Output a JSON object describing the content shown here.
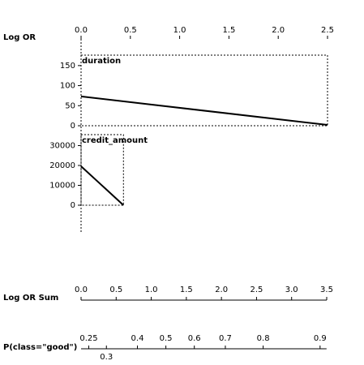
{
  "chart_data": {
    "type": "nomogram",
    "top_axis": {
      "label": "Log OR",
      "xlim": [
        0,
        2.5
      ],
      "xticks": [
        {
          "value": 0,
          "label": "0.0"
        },
        0.5,
        {
          "value": 1,
          "label": "1.0"
        },
        1.5,
        {
          "value": 2,
          "label": "2.0"
        },
        2.5
      ]
    },
    "series": [
      {
        "name": "duration",
        "color": "#000000",
        "x": [
          0,
          2.5
        ],
        "values": [
          73,
          2
        ],
        "ylim": [
          0,
          176
        ],
        "yticks": [
          0,
          50,
          100,
          150
        ]
      },
      {
        "name": "credit_amount",
        "color": "#000000",
        "x": [
          0,
          0.43
        ],
        "values": [
          19600,
          0
        ],
        "ylim": [
          0,
          35500
        ],
        "yticks": [
          0,
          10000,
          20000,
          30000
        ]
      }
    ],
    "sum_axis": {
      "label": "Log OR Sum",
      "xlim": [
        0,
        3.5
      ],
      "xticks": [
        {
          "value": 0,
          "label": "0.0"
        },
        0.5,
        {
          "value": 1,
          "label": "1.0"
        },
        1.5,
        {
          "value": 2,
          "label": "2.0"
        },
        2.5,
        {
          "value": 3,
          "label": "3.0"
        },
        3.5
      ]
    },
    "prob_axis": {
      "label": "P(class=\"good\")",
      "scale": "logit",
      "xlim": [
        0.23,
        0.908
      ],
      "xticks": [
        0.25,
        0.3,
        0.4,
        0.5,
        0.6,
        0.7,
        0.8,
        0.9
      ]
    }
  }
}
